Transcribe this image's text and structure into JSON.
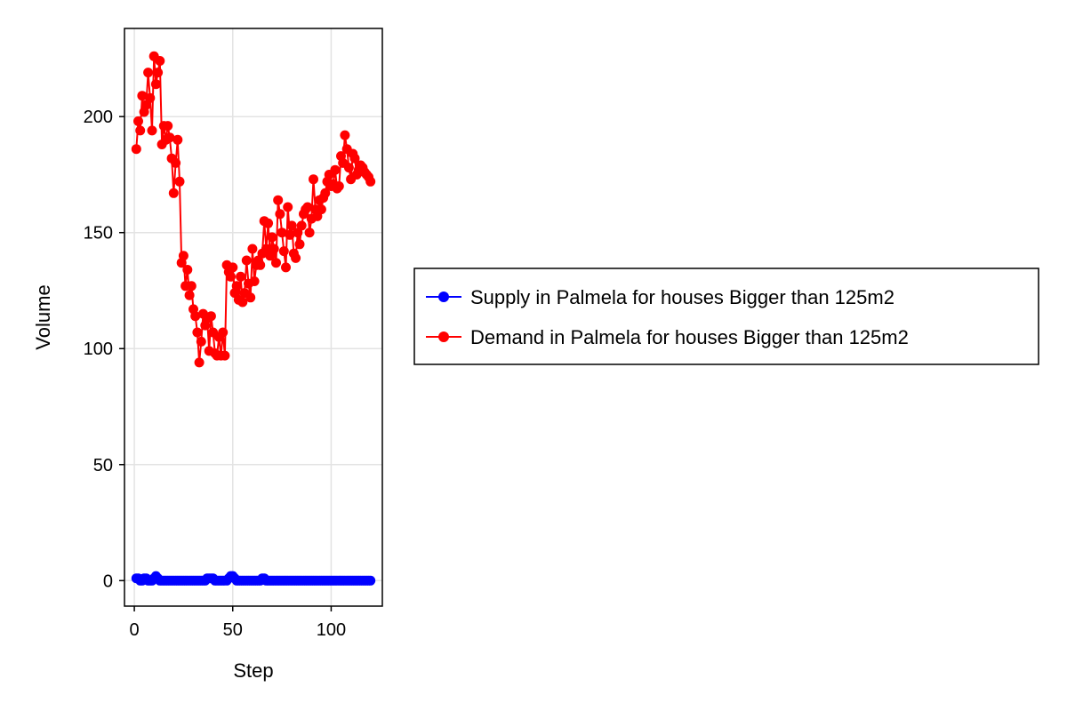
{
  "chart_data": {
    "type": "line",
    "xlabel": "Step",
    "ylabel": "Volume",
    "xlim": [
      -5,
      126
    ],
    "ylim": [
      -11,
      238
    ],
    "x_ticks": [
      0,
      50,
      100
    ],
    "y_ticks": [
      0,
      50,
      100,
      150,
      200
    ],
    "grid": true,
    "legend_position": "right",
    "series": [
      {
        "name": "Supply in Palmela for houses Bigger than 125m2",
        "color": "#0000ff",
        "x": [
          1,
          2,
          3,
          4,
          5,
          6,
          7,
          8,
          9,
          10,
          11,
          12,
          13,
          14,
          15,
          16,
          17,
          18,
          19,
          20,
          21,
          22,
          23,
          24,
          25,
          26,
          27,
          28,
          29,
          30,
          31,
          32,
          33,
          34,
          35,
          36,
          37,
          38,
          39,
          40,
          41,
          42,
          43,
          44,
          45,
          46,
          47,
          48,
          49,
          50,
          51,
          52,
          53,
          54,
          55,
          56,
          57,
          58,
          59,
          60,
          61,
          62,
          63,
          64,
          65,
          66,
          67,
          68,
          69,
          70,
          71,
          72,
          73,
          74,
          75,
          76,
          77,
          78,
          79,
          80,
          81,
          82,
          83,
          84,
          85,
          86,
          87,
          88,
          89,
          90,
          91,
          92,
          93,
          94,
          95,
          96,
          97,
          98,
          99,
          100,
          101,
          102,
          103,
          104,
          105,
          106,
          107,
          108,
          109,
          110,
          111,
          112,
          113,
          114,
          115,
          116,
          117,
          118,
          119,
          120
        ],
        "y": [
          1,
          1,
          0,
          0,
          1,
          1,
          0,
          0,
          0,
          1,
          2,
          1,
          0,
          0,
          0,
          0,
          0,
          0,
          0,
          0,
          0,
          0,
          0,
          0,
          0,
          0,
          0,
          0,
          0,
          0,
          0,
          0,
          0,
          0,
          0,
          0,
          1,
          1,
          1,
          1,
          0,
          0,
          0,
          0,
          0,
          0,
          0,
          1,
          2,
          2,
          1,
          0,
          0,
          0,
          0,
          0,
          0,
          0,
          0,
          0,
          0,
          0,
          0,
          0,
          1,
          1,
          0,
          0,
          0,
          0,
          0,
          0,
          0,
          0,
          0,
          0,
          0,
          0,
          0,
          0,
          0,
          0,
          0,
          0,
          0,
          0,
          0,
          0,
          0,
          0,
          0,
          0,
          0,
          0,
          0,
          0,
          0,
          0,
          0,
          0,
          0,
          0,
          0,
          0,
          0,
          0,
          0,
          0,
          0,
          0,
          0,
          0,
          0,
          0,
          0,
          0,
          0,
          0,
          0,
          0
        ]
      },
      {
        "name": "Demand in Palmela for houses Bigger than 125m2",
        "color": "#ff0000",
        "x": [
          1,
          2,
          3,
          4,
          5,
          6,
          7,
          8,
          9,
          10,
          11,
          12,
          13,
          14,
          15,
          16,
          17,
          18,
          19,
          20,
          21,
          22,
          23,
          24,
          25,
          26,
          27,
          28,
          29,
          30,
          31,
          32,
          33,
          34,
          35,
          36,
          37,
          38,
          39,
          40,
          41,
          42,
          43,
          44,
          45,
          46,
          47,
          48,
          49,
          50,
          51,
          52,
          53,
          54,
          55,
          56,
          57,
          58,
          59,
          60,
          61,
          62,
          63,
          64,
          65,
          66,
          67,
          68,
          69,
          70,
          71,
          72,
          73,
          74,
          75,
          76,
          77,
          78,
          79,
          80,
          81,
          82,
          83,
          84,
          85,
          86,
          87,
          88,
          89,
          90,
          91,
          92,
          93,
          94,
          95,
          96,
          97,
          98,
          99,
          100,
          101,
          102,
          103,
          104,
          105,
          106,
          107,
          108,
          109,
          110,
          111,
          112,
          113,
          114,
          115,
          116,
          117,
          118,
          119,
          120
        ],
        "y": [
          186,
          198,
          194,
          209,
          202,
          205,
          219,
          208,
          194,
          226,
          214,
          219,
          224,
          188,
          196,
          190,
          196,
          191,
          182,
          167,
          180,
          190,
          172,
          137,
          140,
          127,
          134,
          123,
          127,
          117,
          114,
          107,
          94,
          103,
          115,
          110,
          113,
          99,
          114,
          107,
          98,
          97,
          105,
          97,
          107,
          97,
          136,
          133,
          131,
          135,
          124,
          127,
          121,
          131,
          120,
          124,
          138,
          128,
          122,
          143,
          129,
          136,
          138,
          136,
          141,
          155,
          143,
          154,
          140,
          148,
          143,
          137,
          164,
          158,
          150,
          142,
          135,
          161,
          149,
          153,
          141,
          139,
          150,
          145,
          153,
          158,
          160,
          161,
          150,
          156,
          173,
          160,
          157,
          164,
          160,
          165,
          167,
          172,
          175,
          170,
          171,
          177,
          169,
          170,
          183,
          180,
          192,
          186,
          178,
          173,
          184,
          182,
          175,
          177,
          179,
          178,
          176,
          175,
          174,
          172
        ]
      }
    ]
  }
}
